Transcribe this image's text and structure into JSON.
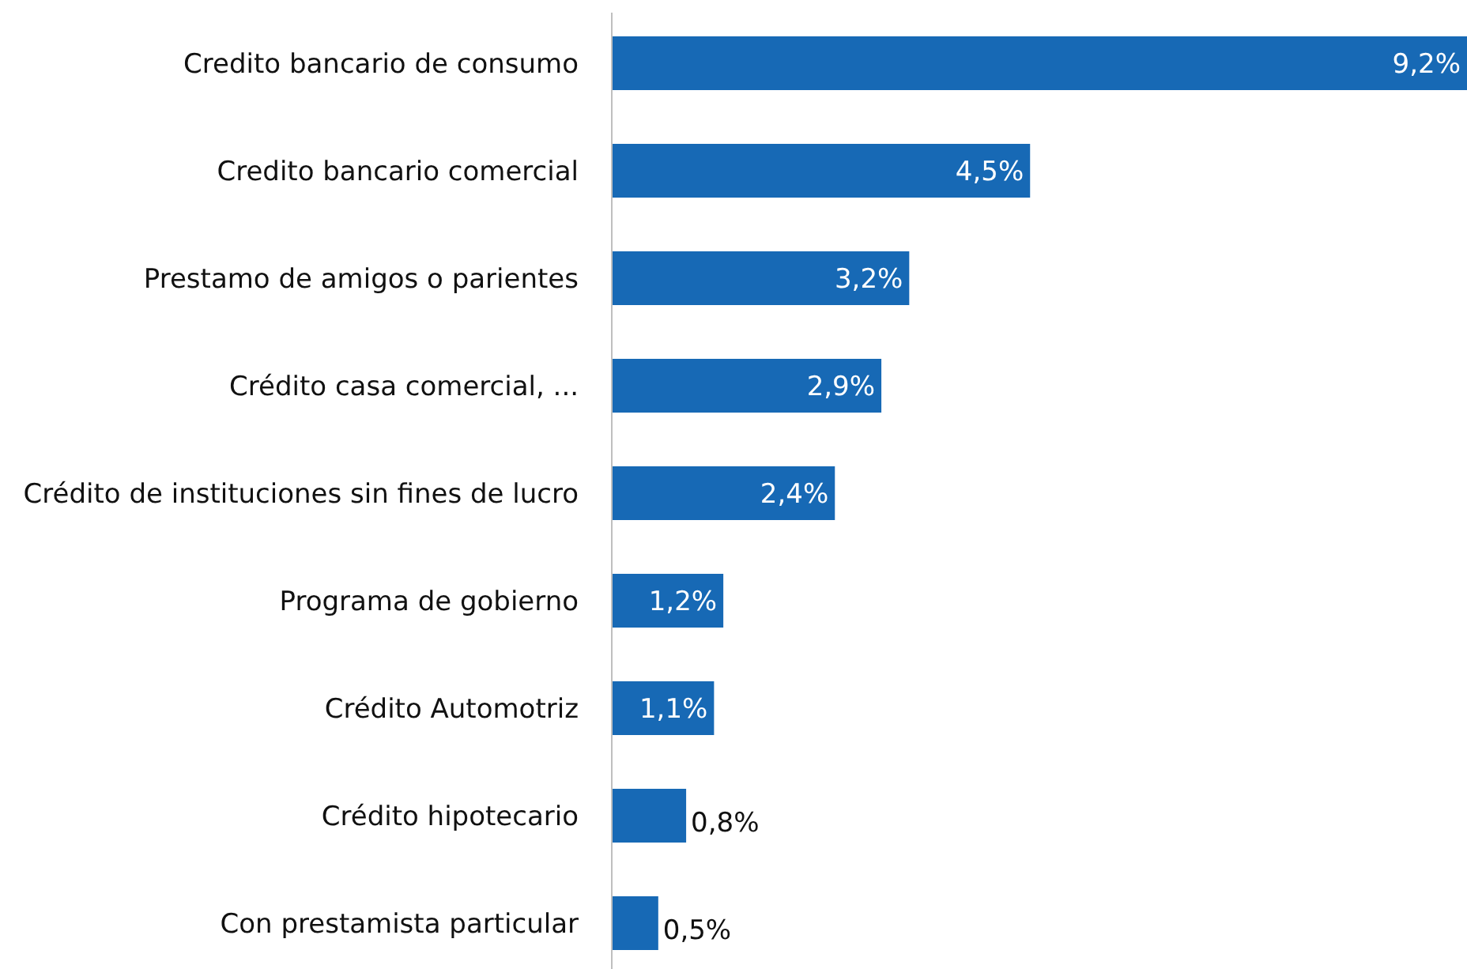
{
  "chart_data": {
    "type": "bar",
    "orientation": "horizontal",
    "categories": [
      "Credito bancario de consumo",
      "Credito bancario comercial",
      "Prestamo de amigos o parientes",
      "Crédito casa comercial, ...",
      "Crédito de instituciones sin  fines de lucro",
      "Programa de gobierno",
      "Crédito Automotriz",
      "Crédito hipotecario",
      "Con prestamista particular"
    ],
    "values": [
      9.2,
      4.5,
      3.2,
      2.9,
      2.4,
      1.2,
      1.1,
      0.8,
      0.5
    ],
    "value_labels": [
      "9,2%",
      "4,5%",
      "3,2%",
      "2,9%",
      "2,4%",
      "1,2%",
      "1,1%",
      "0,8%",
      "0,5%"
    ],
    "color": "#1769b5"
  }
}
